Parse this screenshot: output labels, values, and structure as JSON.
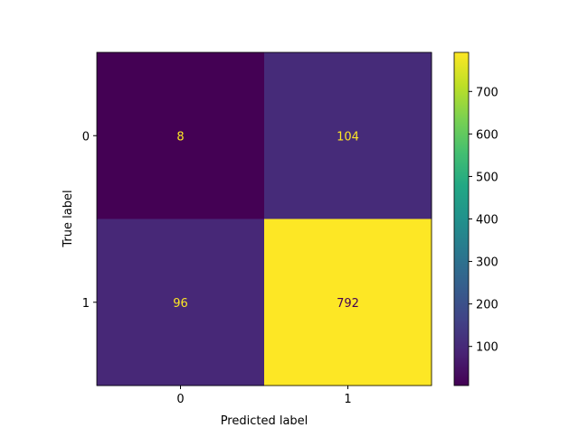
{
  "chart_data": {
    "type": "heatmap",
    "title": "",
    "xlabel": "Predicted label",
    "ylabel": "True label",
    "x_categories": [
      "0",
      "1"
    ],
    "y_categories": [
      "0",
      "1"
    ],
    "values": [
      [
        8,
        104
      ],
      [
        96,
        792
      ]
    ],
    "colormap": "viridis",
    "colorbar": {
      "range": [
        8,
        792
      ],
      "ticks": [
        100,
        200,
        300,
        400,
        500,
        600,
        700
      ],
      "tick_labels": [
        "100",
        "200",
        "300",
        "400",
        "500",
        "600",
        "700"
      ]
    },
    "text_colors": {
      "on_dark": "#fde725",
      "on_light": "#440154"
    },
    "grid": false
  }
}
